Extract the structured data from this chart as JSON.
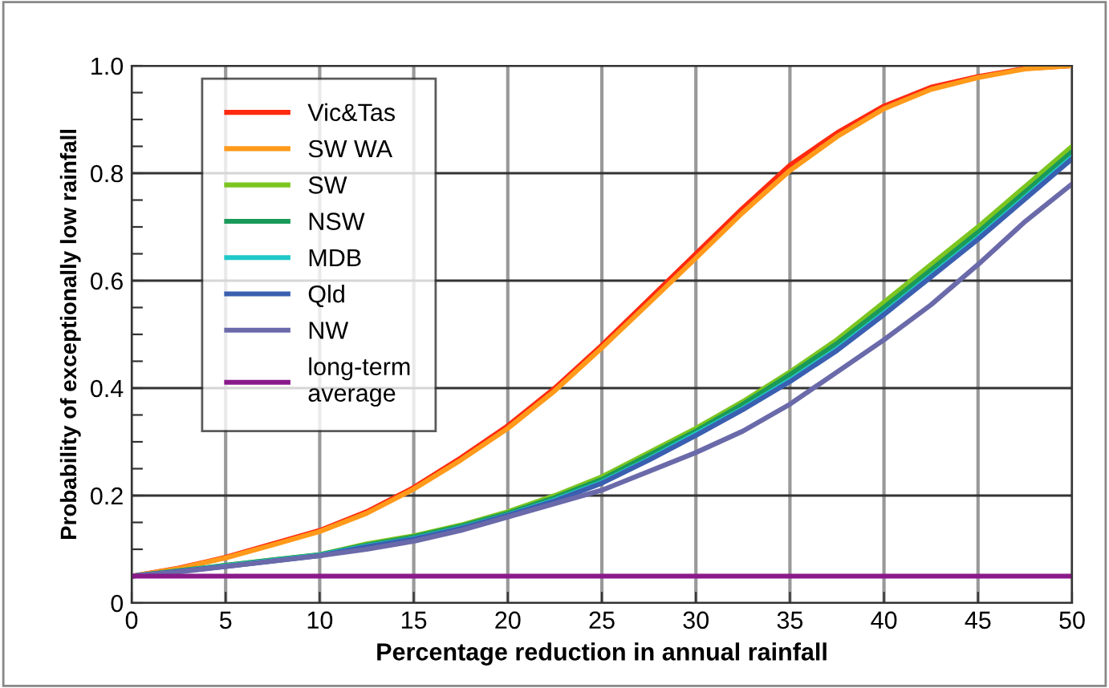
{
  "chart_data": {
    "type": "line",
    "xlabel": "Percentage reduction in annual rainfall",
    "ylabel": "Probability of exceptionally low rainfall",
    "x": [
      0,
      2.5,
      5,
      7.5,
      10,
      12.5,
      15,
      17.5,
      20,
      22.5,
      25,
      27.5,
      30,
      32.5,
      35,
      37.5,
      40,
      42.5,
      45,
      47.5,
      50
    ],
    "series": [
      {
        "name": "Vic&Tas",
        "color": "#ff2a10",
        "values": [
          0.05,
          0.065,
          0.085,
          0.11,
          0.135,
          0.17,
          0.215,
          0.27,
          0.33,
          0.4,
          0.48,
          0.565,
          0.65,
          0.735,
          0.815,
          0.875,
          0.925,
          0.96,
          0.98,
          0.995,
          1.0
        ]
      },
      {
        "name": "SW WA",
        "color": "#ff9a1a",
        "values": [
          0.05,
          0.064,
          0.084,
          0.108,
          0.133,
          0.167,
          0.212,
          0.266,
          0.325,
          0.395,
          0.475,
          0.558,
          0.642,
          0.727,
          0.805,
          0.868,
          0.92,
          0.956,
          0.978,
          0.994,
          1.0
        ]
      },
      {
        "name": "SW",
        "color": "#7cc520",
        "values": [
          0.05,
          0.06,
          0.07,
          0.08,
          0.09,
          0.11,
          0.125,
          0.145,
          0.17,
          0.2,
          0.235,
          0.28,
          0.325,
          0.375,
          0.43,
          0.49,
          0.56,
          0.63,
          0.7,
          0.775,
          0.85
        ]
      },
      {
        "name": "NSW",
        "color": "#1a9a5a",
        "values": [
          0.05,
          0.06,
          0.07,
          0.08,
          0.09,
          0.108,
          0.123,
          0.143,
          0.167,
          0.196,
          0.23,
          0.275,
          0.32,
          0.37,
          0.425,
          0.483,
          0.55,
          0.62,
          0.69,
          0.765,
          0.84
        ]
      },
      {
        "name": "MDB",
        "color": "#20c8c8",
        "values": [
          0.05,
          0.059,
          0.069,
          0.079,
          0.089,
          0.106,
          0.12,
          0.14,
          0.164,
          0.192,
          0.225,
          0.268,
          0.315,
          0.362,
          0.415,
          0.473,
          0.54,
          0.61,
          0.68,
          0.755,
          0.83
        ]
      },
      {
        "name": "Qld",
        "color": "#3a5fb0",
        "values": [
          0.05,
          0.059,
          0.068,
          0.078,
          0.088,
          0.105,
          0.119,
          0.139,
          0.163,
          0.19,
          0.223,
          0.266,
          0.312,
          0.36,
          0.412,
          0.47,
          0.537,
          0.607,
          0.677,
          0.752,
          0.827
        ]
      },
      {
        "name": "NW",
        "color": "#6a6aaa",
        "values": [
          0.05,
          0.058,
          0.068,
          0.078,
          0.088,
          0.1,
          0.115,
          0.135,
          0.16,
          0.185,
          0.21,
          0.245,
          0.28,
          0.32,
          0.37,
          0.43,
          0.49,
          0.555,
          0.63,
          0.71,
          0.78
        ]
      },
      {
        "name": "long-term\naverage",
        "color": "#8a1a8a",
        "x": [
          0,
          50
        ],
        "values": [
          0.05,
          0.05
        ]
      }
    ],
    "xlim": [
      0,
      50
    ],
    "ylim": [
      0,
      1.0
    ],
    "xticks": [
      0,
      5,
      10,
      15,
      20,
      25,
      30,
      35,
      40,
      45,
      50
    ],
    "yticks": [
      0,
      {
        "value": 0.05,
        "label": null
      },
      {
        "value": 0.1,
        "label": null
      },
      {
        "value": 0.15,
        "label": null
      },
      0.2,
      {
        "value": 0.25,
        "label": null
      },
      {
        "value": 0.3,
        "label": null
      },
      {
        "value": 0.35,
        "label": null
      },
      0.4,
      {
        "value": 0.45,
        "label": null
      },
      {
        "value": 0.5,
        "label": null
      },
      {
        "value": 0.55,
        "label": null
      },
      0.6,
      {
        "value": 0.65,
        "label": null
      },
      {
        "value": 0.7,
        "label": null
      },
      {
        "value": 0.75,
        "label": null
      },
      0.8,
      {
        "value": 0.85,
        "label": null
      },
      {
        "value": 0.9,
        "label": null
      },
      {
        "value": 0.95,
        "label": null
      },
      {
        "value": 1.0,
        "label": "1.0"
      }
    ],
    "grid": true,
    "legend": "top left",
    "marker": "none",
    "line_style": "solid"
  }
}
